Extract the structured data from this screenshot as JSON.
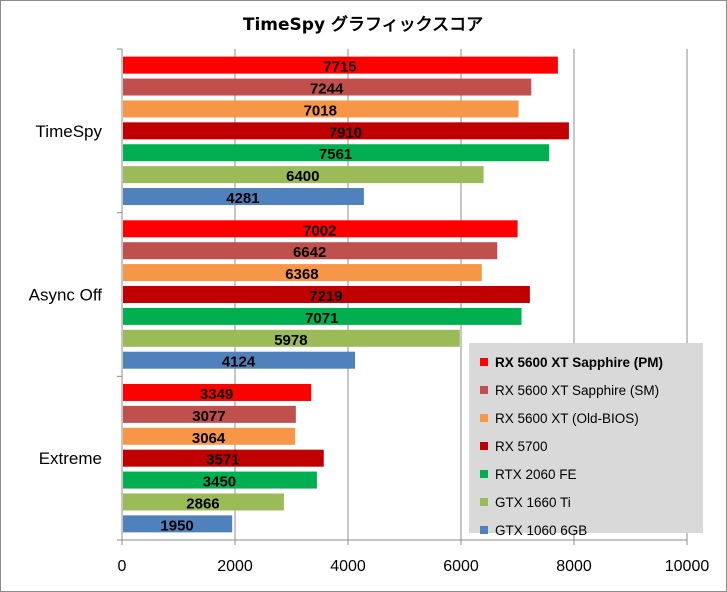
{
  "chart_data": {
    "type": "bar",
    "orientation": "horizontal",
    "title": "TimeSpy グラフィックスコア",
    "xlabel": "",
    "ylabel": "",
    "xlim": [
      0,
      10000
    ],
    "x_ticks": [
      0,
      2000,
      4000,
      6000,
      8000,
      10000
    ],
    "gridlines": "vertical",
    "legend_position": "bottom-right",
    "categories": [
      "TimeSpy",
      "Async Off",
      "Extreme"
    ],
    "series": [
      {
        "name": "RX 5600 XT Sapphire (PM)",
        "color": "#ff0000",
        "bold": true,
        "values": [
          7715,
          7002,
          3349
        ]
      },
      {
        "name": "RX 5600 XT Sapphire (SM)",
        "color": "#c0504d",
        "bold": false,
        "values": [
          7244,
          6642,
          3077
        ]
      },
      {
        "name": "RX 5600 XT (Old-BIOS)",
        "color": "#f79646",
        "bold": false,
        "values": [
          7018,
          6368,
          3064
        ]
      },
      {
        "name": "RX 5700",
        "color": "#c00000",
        "bold": false,
        "values": [
          7910,
          7219,
          3571
        ]
      },
      {
        "name": "RTX 2060 FE",
        "color": "#00b050",
        "bold": false,
        "values": [
          7561,
          7071,
          3450
        ]
      },
      {
        "name": "GTX 1660 Ti",
        "color": "#9bbb59",
        "bold": false,
        "values": [
          6400,
          5978,
          2866
        ]
      },
      {
        "name": "GTX 1060 6GB",
        "color": "#4f81bd",
        "bold": false,
        "values": [
          4281,
          4124,
          1950
        ]
      }
    ]
  }
}
